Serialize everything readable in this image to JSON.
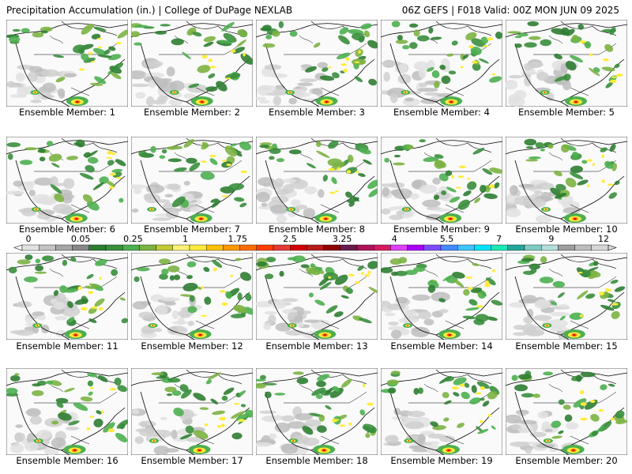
{
  "header": {
    "left": "Precipitation Accumulation (in.) | College of DuPage NEXLAB",
    "right": "06Z GEFS | F018 Valid: 00Z MON JUN 09 2025"
  },
  "label_prefix": "Ensemble Member: ",
  "members": [
    1,
    2,
    3,
    4,
    5,
    6,
    7,
    8,
    9,
    10,
    11,
    12,
    13,
    14,
    15,
    16,
    17,
    18,
    19,
    20
  ],
  "color_scale": {
    "tick_labels": [
      "0",
      "0.05",
      "0.25",
      "1",
      "1.75",
      "2.5",
      "3.25",
      "4",
      "5.5",
      "7",
      "9",
      "12"
    ],
    "colors": [
      "#e2e2e2",
      "#c4c4c4",
      "#a6a6a6",
      "#888888",
      "#2e7d32",
      "#388e3c",
      "#4caf50",
      "#7cb342",
      "#c0ca33",
      "#fff176",
      "#ffeb3b",
      "#ffc107",
      "#ff9800",
      "#ff6d00",
      "#ff3d00",
      "#e53935",
      "#d50000",
      "#b71c1c",
      "#8e0000",
      "#6a1b4d",
      "#ad1457",
      "#d81b60",
      "#e040fb",
      "#aa00ff",
      "#7c4dff",
      "#448aff",
      "#40c4ff",
      "#00e5ff",
      "#1de9b6",
      "#26a69a",
      "#80cbc4",
      "#b2dfdb",
      "#9e9e9e",
      "#bdbdbd",
      "#d6d6d6"
    ]
  }
}
